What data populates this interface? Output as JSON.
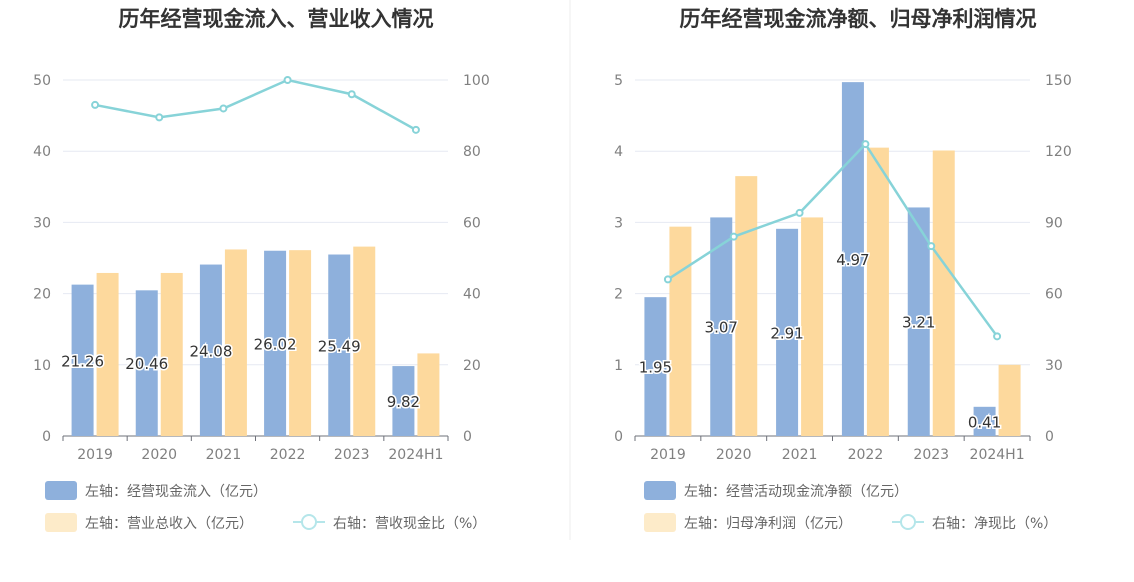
{
  "chart_data": [
    {
      "type": "bar",
      "title": "历年经营现金流入、营业收入情况",
      "categories": [
        "2019",
        "2020",
        "2021",
        "2022",
        "2023",
        "2024H1"
      ],
      "left_axis": {
        "ylim": [
          0,
          50
        ],
        "ticks": [
          "0",
          "10",
          "20",
          "30",
          "40",
          "50"
        ]
      },
      "right_axis": {
        "ylim": [
          0,
          100
        ],
        "ticks": [
          "0",
          "20",
          "40",
          "60",
          "80",
          "100"
        ]
      },
      "series": [
        {
          "name": "左轴：经营现金流入（亿元）",
          "kind": "bar",
          "axis": "left",
          "color": "#8eb0dc",
          "values": [
            21.26,
            20.46,
            24.08,
            26.02,
            25.49,
            9.82
          ],
          "labels": [
            "21.26",
            "20.46",
            "24.08",
            "26.02",
            "25.49",
            "9.82"
          ]
        },
        {
          "name": "左轴：营业总收入（亿元）",
          "kind": "bar",
          "axis": "left",
          "color": "#fdd99d",
          "values": [
            22.9,
            22.9,
            26.2,
            26.1,
            26.6,
            11.6
          ]
        },
        {
          "name": "右轴：营收现金比（%）",
          "kind": "line",
          "axis": "right",
          "color": "#87d3d8",
          "values": [
            93,
            89.5,
            92,
            100,
            96,
            86
          ]
        }
      ],
      "legend": "bottom-left",
      "grid": true
    },
    {
      "type": "bar",
      "title": "历年经营现金流净额、归母净利润情况",
      "categories": [
        "2019",
        "2020",
        "2021",
        "2022",
        "2023",
        "2024H1"
      ],
      "left_axis": {
        "ylim": [
          0,
          5
        ],
        "ticks": [
          "0",
          "1",
          "2",
          "3",
          "4",
          "5"
        ]
      },
      "right_axis": {
        "ylim": [
          0,
          150
        ],
        "ticks": [
          "0",
          "30",
          "60",
          "90",
          "120",
          "150"
        ]
      },
      "series": [
        {
          "name": "左轴：经营活动现金流净额（亿元）",
          "kind": "bar",
          "axis": "left",
          "color": "#8eb0dc",
          "values": [
            1.95,
            3.07,
            2.91,
            4.97,
            3.21,
            0.41
          ],
          "labels": [
            "1.95",
            "3.07",
            "2.91",
            "4.97",
            "3.21",
            "0.41"
          ]
        },
        {
          "name": "左轴：归母净利润（亿元）",
          "kind": "bar",
          "axis": "left",
          "color": "#fdd99d",
          "values": [
            2.94,
            3.65,
            3.07,
            4.05,
            4.01,
            1.0
          ]
        },
        {
          "name": "右轴：净现比（%）",
          "kind": "line",
          "axis": "right",
          "color": "#87d3d8",
          "values": [
            66,
            84,
            94,
            123,
            80,
            42
          ]
        }
      ],
      "legend": "bottom-left",
      "grid": true
    }
  ]
}
